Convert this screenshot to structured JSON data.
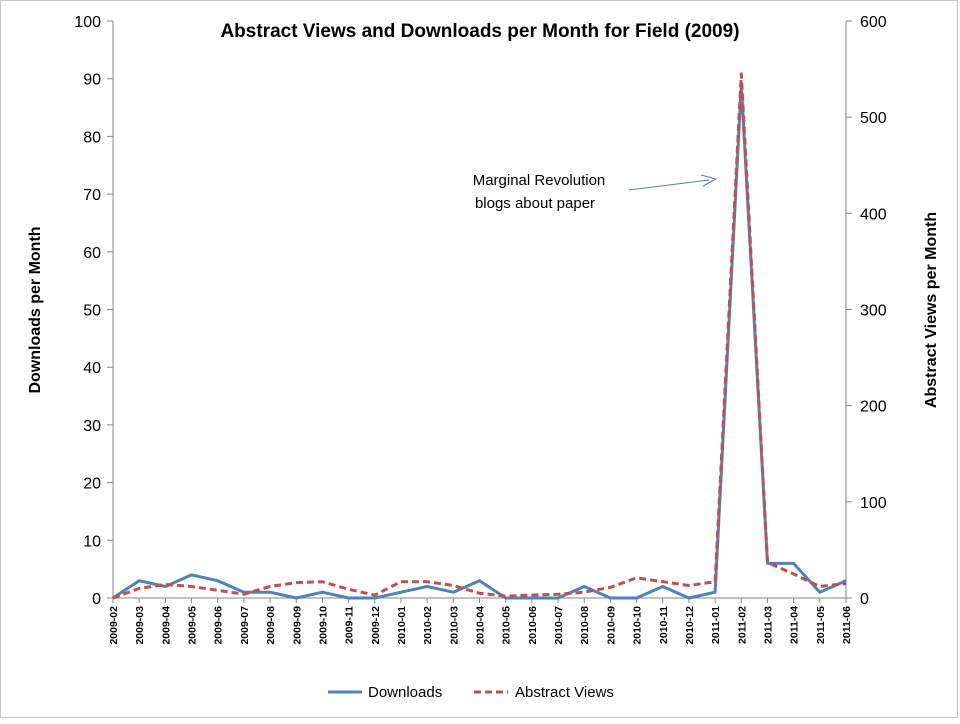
{
  "chart_data": {
    "type": "line",
    "title": "Abstract Views and Downloads per Month for Field (2009)",
    "ylabel_left": "Downloads per Month",
    "ylabel_right": "Abstract Views per Month",
    "ylim_left": [
      0,
      100
    ],
    "ylim_right": [
      0,
      600
    ],
    "yticks_left": [
      "0",
      "10",
      "20",
      "30",
      "40",
      "50",
      "60",
      "70",
      "80",
      "90",
      "100"
    ],
    "yticks_right": [
      "0",
      "100",
      "200",
      "300",
      "400",
      "500",
      "600"
    ],
    "categories": [
      "2009-02",
      "2009-03",
      "2009-04",
      "2009-05",
      "2009-06",
      "2009-07",
      "2009-08",
      "2009-09",
      "2009-10",
      "2009-11",
      "2009-12",
      "2010-01",
      "2010-02",
      "2010-03",
      "2010-04",
      "2010-05",
      "2010-06",
      "2010-07",
      "2010-08",
      "2010-09",
      "2010-10",
      "2010-11",
      "2010-12",
      "2011-01",
      "2011-02",
      "2011-03",
      "2011-04",
      "2011-05",
      "2011-06"
    ],
    "series": [
      {
        "name": "Downloads",
        "axis": "left",
        "color": "#4f81bd",
        "style": "solid",
        "values": [
          0,
          3,
          2,
          4,
          3,
          1,
          1,
          0,
          1,
          0,
          0,
          1,
          2,
          1,
          3,
          0,
          0,
          0,
          2,
          0,
          0,
          2,
          0,
          1,
          89,
          6,
          6,
          1,
          3
        ]
      },
      {
        "name": "Abstract Views",
        "axis": "right",
        "color": "#c0504d",
        "style": "dashed",
        "values": [
          0,
          10,
          14,
          12,
          8,
          4,
          12,
          16,
          17,
          9,
          3,
          17,
          17,
          13,
          5,
          2,
          3,
          4,
          6,
          11,
          21,
          17,
          13,
          17,
          545,
          37,
          25,
          12,
          15
        ]
      }
    ],
    "annotation": {
      "lines": [
        "Marginal Revolution",
        "blogs about paper"
      ],
      "points_to": "2011-02"
    },
    "legend": {
      "position": "bottom",
      "items": [
        "Downloads",
        "Abstract Views"
      ]
    },
    "grid": false
  }
}
